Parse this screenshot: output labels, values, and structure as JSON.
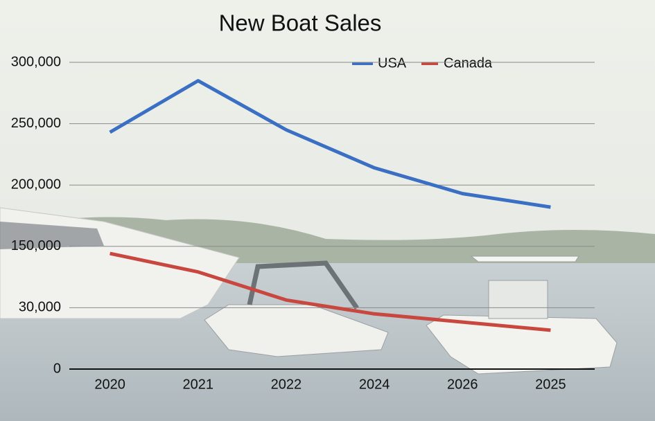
{
  "chart_data": {
    "type": "line",
    "title": "New Boat Sales",
    "categories": [
      "2020",
      "2021",
      "2022",
      "2024",
      "2026",
      "2025"
    ],
    "series": [
      {
        "name": "USA",
        "color": "#3a6fc4",
        "values": [
          243000,
          285000,
          245000,
          214000,
          193000,
          182000
        ]
      },
      {
        "name": "Canada",
        "color": "#c8473f",
        "values": [
          136000,
          100000,
          45000,
          27000,
          23000,
          19000
        ]
      }
    ],
    "ylim": [
      0,
      300000
    ],
    "yticks": [
      0,
      {
        "value": 30000,
        "label": "30,000"
      },
      {
        "value": 150000,
        "label": "150,000"
      },
      {
        "value": 200000,
        "label": "200,000"
      },
      {
        "value": 250000,
        "label": "250,000"
      },
      {
        "value": 300000,
        "label": "300,000"
      }
    ],
    "grid": true,
    "legend": "top"
  }
}
